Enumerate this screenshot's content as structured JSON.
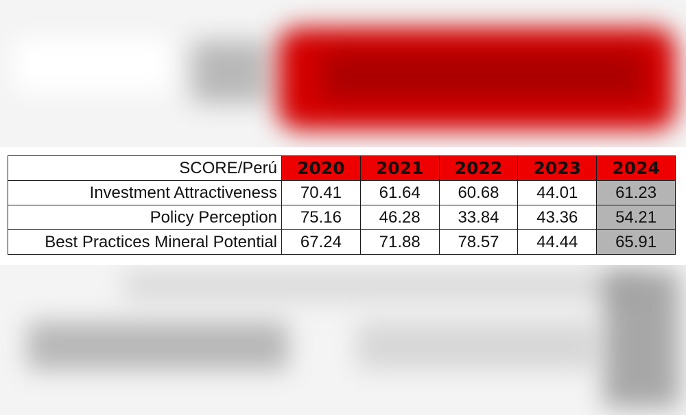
{
  "table": {
    "corner_label": "SCORE/Perú",
    "years": [
      "2020",
      "2021",
      "2022",
      "2023",
      "2024"
    ],
    "rows": [
      {
        "label": "Investment Attractiveness",
        "values": [
          "70.41",
          "61.64",
          "60.68",
          "44.01",
          "61.23"
        ]
      },
      {
        "label": "Policy Perception",
        "values": [
          "75.16",
          "46.28",
          "33.84",
          "43.36",
          "54.21"
        ]
      },
      {
        "label": "Best Practices Mineral Potential",
        "values": [
          "67.24",
          "71.88",
          "78.57",
          "44.44",
          "65.91"
        ]
      }
    ],
    "header_color": "#ee0000",
    "highlight_color": "#b4b4b4"
  },
  "chart_data": {
    "type": "table",
    "title": "",
    "corner_label": "SCORE/Perú",
    "columns": [
      "2020",
      "2021",
      "2022",
      "2023",
      "2024"
    ],
    "rows": [
      {
        "name": "Investment Attractiveness",
        "values": [
          70.41,
          61.64,
          60.68,
          44.01,
          61.23
        ]
      },
      {
        "name": "Policy Perception",
        "values": [
          75.16,
          46.28,
          33.84,
          43.36,
          54.21
        ]
      },
      {
        "name": "Best Practices Mineral Potential",
        "values": [
          67.24,
          71.88,
          78.57,
          44.44,
          65.91
        ]
      }
    ],
    "highlighted_column": "2024"
  }
}
